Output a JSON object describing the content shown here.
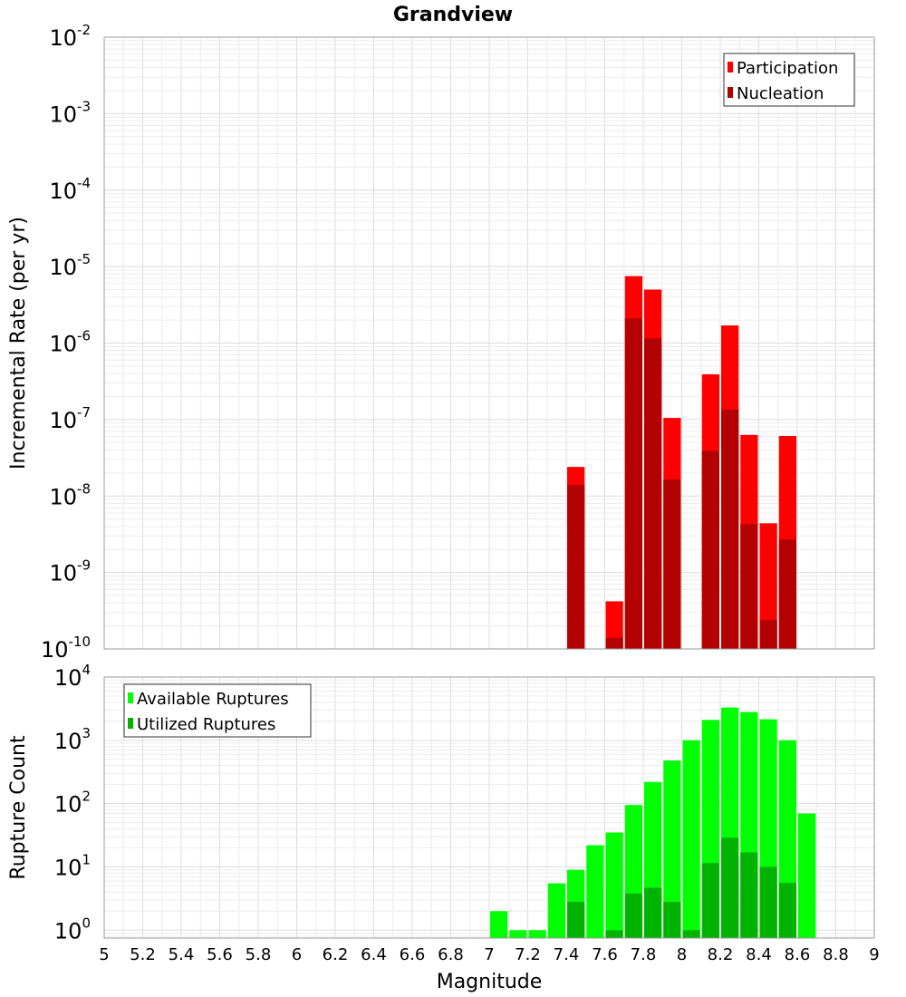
{
  "chart_data": [
    {
      "type": "bar",
      "title": "Grandview",
      "xlabel": "",
      "ylabel": "Incremental Rate (per yr)",
      "y_scale": "log",
      "ylim": [
        1e-10,
        0.01
      ],
      "xlim": [
        5,
        9
      ],
      "y_ticks": [
        {
          "base": "10",
          "exp": "-2"
        },
        {
          "base": "10",
          "exp": "-3"
        },
        {
          "base": "10",
          "exp": "-4"
        },
        {
          "base": "10",
          "exp": "-5"
        },
        {
          "base": "10",
          "exp": "-6"
        },
        {
          "base": "10",
          "exp": "-7"
        },
        {
          "base": "10",
          "exp": "-8"
        },
        {
          "base": "10",
          "exp": "-9"
        },
        {
          "base": "10",
          "exp": "-10"
        }
      ],
      "grid": true,
      "legend_position": "top-right",
      "bar_width": 0.1,
      "series": [
        {
          "name": "Participation",
          "color": "#ff0000",
          "points": [
            {
              "x": 7.45,
              "y": 2.4e-08
            },
            {
              "x": 7.65,
              "y": 4.2e-10
            },
            {
              "x": 7.75,
              "y": 7.5e-06
            },
            {
              "x": 7.85,
              "y": 5e-06
            },
            {
              "x": 7.95,
              "y": 1.05e-07
            },
            {
              "x": 8.15,
              "y": 3.9e-07
            },
            {
              "x": 8.25,
              "y": 1.7e-06
            },
            {
              "x": 8.35,
              "y": 6.3e-08
            },
            {
              "x": 8.45,
              "y": 4.4e-09
            },
            {
              "x": 8.55,
              "y": 6.1e-08
            }
          ]
        },
        {
          "name": "Nucleation",
          "color": "#b30000",
          "points": [
            {
              "x": 7.45,
              "y": 1.4e-08
            },
            {
              "x": 7.65,
              "y": 1.4e-10
            },
            {
              "x": 7.75,
              "y": 2.1e-06
            },
            {
              "x": 7.85,
              "y": 1.15e-06
            },
            {
              "x": 7.95,
              "y": 1.65e-08
            },
            {
              "x": 8.15,
              "y": 3.9e-08
            },
            {
              "x": 8.25,
              "y": 1.35e-07
            },
            {
              "x": 8.35,
              "y": 4.3e-09
            },
            {
              "x": 8.45,
              "y": 2.4e-10
            },
            {
              "x": 8.55,
              "y": 2.7e-09
            }
          ]
        }
      ]
    },
    {
      "type": "bar",
      "title": "",
      "xlabel": "Magnitude",
      "ylabel": "Rupture Count",
      "y_scale": "log",
      "ylim": [
        0.75,
        10000
      ],
      "xlim": [
        5,
        9
      ],
      "x_ticks": [
        "5",
        "5.2",
        "5.4",
        "5.6",
        "5.8",
        "6",
        "6.2",
        "6.4",
        "6.6",
        "6.8",
        "7",
        "7.2",
        "7.4",
        "7.6",
        "7.8",
        "8",
        "8.2",
        "8.4",
        "8.6",
        "8.8",
        "9"
      ],
      "y_ticks": [
        {
          "base": "10",
          "exp": "4"
        },
        {
          "base": "10",
          "exp": "3"
        },
        {
          "base": "10",
          "exp": "2"
        },
        {
          "base": "10",
          "exp": "1"
        },
        {
          "base": "10",
          "exp": "0"
        }
      ],
      "grid": true,
      "legend_position": "top-left",
      "bar_width": 0.1,
      "series": [
        {
          "name": "Available Ruptures",
          "color": "#00ff00",
          "points": [
            {
              "x": 7.05,
              "y": 2
            },
            {
              "x": 7.15,
              "y": 1
            },
            {
              "x": 7.25,
              "y": 1
            },
            {
              "x": 7.35,
              "y": 5.5
            },
            {
              "x": 7.45,
              "y": 9
            },
            {
              "x": 7.55,
              "y": 22
            },
            {
              "x": 7.65,
              "y": 35
            },
            {
              "x": 7.75,
              "y": 95
            },
            {
              "x": 7.85,
              "y": 220
            },
            {
              "x": 7.95,
              "y": 480
            },
            {
              "x": 8.05,
              "y": 1000
            },
            {
              "x": 8.15,
              "y": 2100
            },
            {
              "x": 8.25,
              "y": 3300
            },
            {
              "x": 8.35,
              "y": 2800
            },
            {
              "x": 8.45,
              "y": 2150
            },
            {
              "x": 8.55,
              "y": 1000
            },
            {
              "x": 8.65,
              "y": 70
            }
          ]
        },
        {
          "name": "Utilized Ruptures",
          "color": "#00b300",
          "points": [
            {
              "x": 7.45,
              "y": 2.8
            },
            {
              "x": 7.65,
              "y": 1
            },
            {
              "x": 7.75,
              "y": 3.8
            },
            {
              "x": 7.85,
              "y": 4.7
            },
            {
              "x": 7.95,
              "y": 2.8
            },
            {
              "x": 8.05,
              "y": 1
            },
            {
              "x": 8.15,
              "y": 11.5
            },
            {
              "x": 8.25,
              "y": 29
            },
            {
              "x": 8.35,
              "y": 17
            },
            {
              "x": 8.45,
              "y": 10
            },
            {
              "x": 8.55,
              "y": 5.6
            }
          ]
        }
      ]
    }
  ]
}
